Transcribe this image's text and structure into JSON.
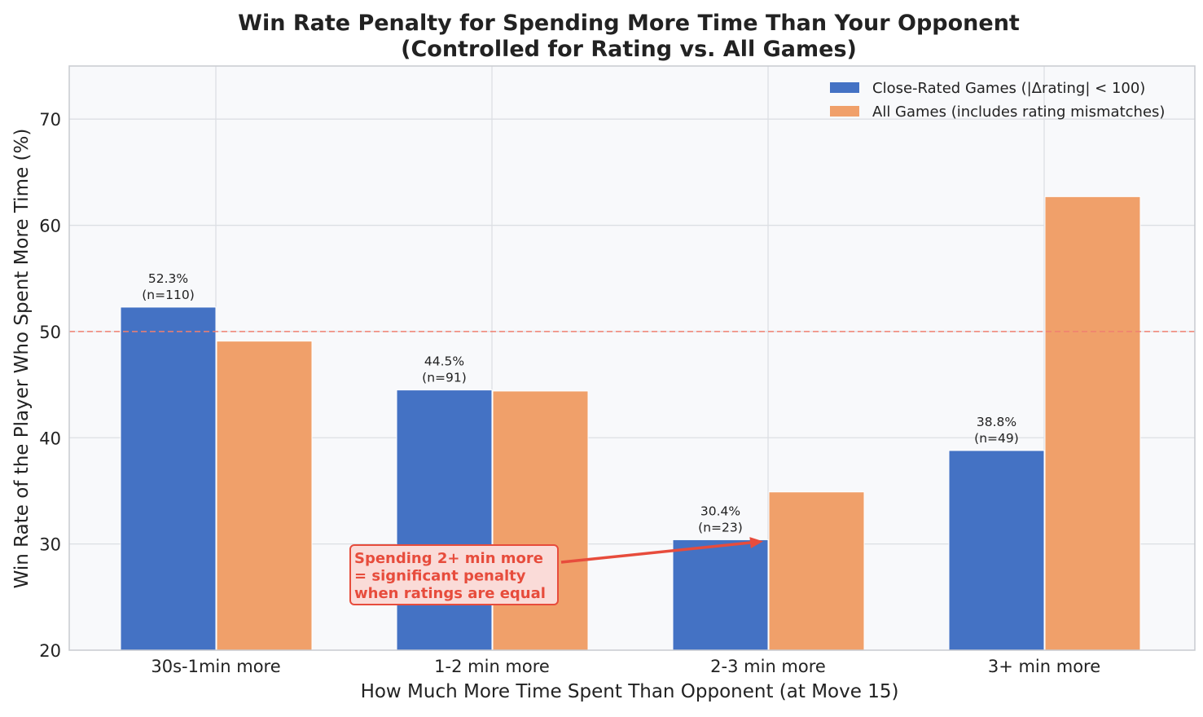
{
  "chart_data": {
    "type": "bar",
    "title": "Win Rate Penalty for Spending More Time Than Your Opponent",
    "subtitle": "(Controlled for Rating vs. All Games)",
    "xlabel": "How Much More Time Spent Than Opponent (at Move 15)",
    "ylabel": "Win Rate of the Player Who Spent More Time (%)",
    "ylim": [
      20,
      75
    ],
    "yticks": [
      20,
      30,
      40,
      50,
      60,
      70
    ],
    "grid": true,
    "legend_position": "top-right",
    "categories": [
      "30s-1min more",
      "1-2 min more",
      "2-3 min more",
      "3+ min more"
    ],
    "series": [
      {
        "name": "Close-Rated Games (|Δrating| < 100)",
        "color": "#4472c4",
        "values": [
          52.3,
          44.5,
          30.4,
          38.8
        ],
        "labels": [
          [
            "52.3%",
            "(n=110)"
          ],
          [
            "44.5%",
            "(n=91)"
          ],
          [
            "30.4%",
            "(n=23)"
          ],
          [
            "38.8%",
            "(n=49)"
          ]
        ]
      },
      {
        "name": "All Games (includes rating mismatches)",
        "color": "#f0a06a",
        "values": [
          49.1,
          44.4,
          34.9,
          62.7
        ]
      }
    ],
    "reference_line": {
      "y": 50,
      "color": "#f08070"
    },
    "annotation": {
      "lines": [
        "Spending 2+ min more",
        "= significant penalty",
        "when ratings are equal"
      ],
      "color": "#e74c3c",
      "box_fill": "#fadbd8",
      "target_category": 2,
      "target_y": 30.4
    }
  }
}
